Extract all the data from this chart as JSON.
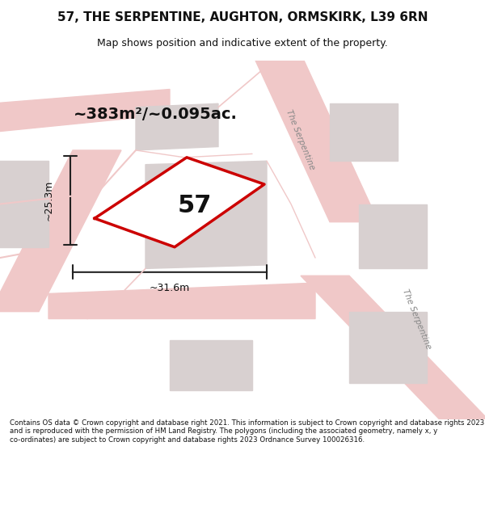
{
  "title_line1": "57, THE SERPENTINE, AUGHTON, ORMSKIRK, L39 6RN",
  "title_line2": "Map shows position and indicative extent of the property.",
  "area_text": "~383m²/~0.095ac.",
  "number_label": "57",
  "dim_vertical": "~25.3m",
  "dim_horizontal": "~31.6m",
  "footer_text": "Contains OS data © Crown copyright and database right 2021. This information is subject to Crown copyright and database rights 2023 and is reproduced with the permission of HM Land Registry. The polygons (including the associated geometry, namely x, y co-ordinates) are subject to Crown copyright and database rights 2023 Ordnance Survey 100026316.",
  "bg_color": "#ffffff",
  "map_bg": "#f9f5f5",
  "road_color": "#f0c8c8",
  "building_color": "#d8d0d0",
  "plot_outline_color": "#cc0000",
  "dim_line_color": "#222222",
  "text_color": "#111111",
  "road_label_color": "#888888",
  "road_label_2": "The Serpentine",
  "road_label_3": "The Serpentine"
}
